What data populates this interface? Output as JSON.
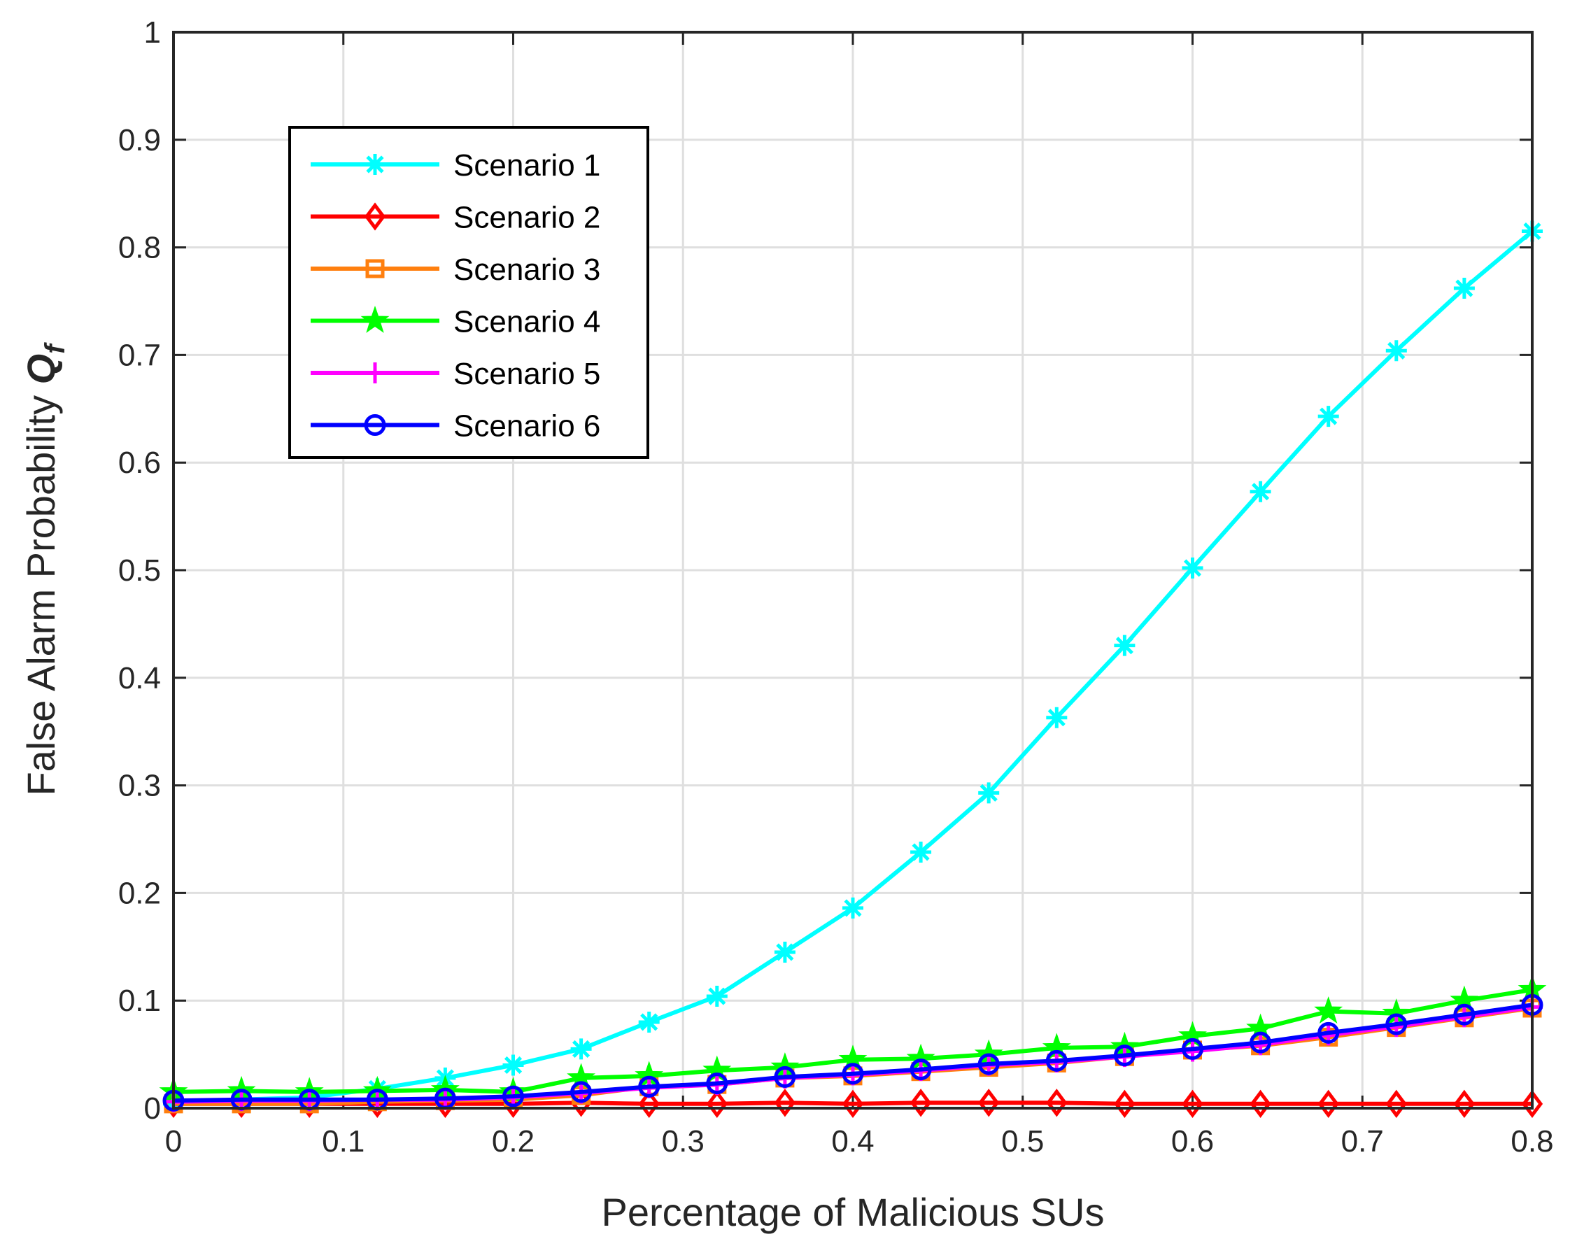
{
  "chart_data": {
    "type": "line",
    "xlabel": "Percentage of Malicious SUs",
    "ylabel": "False Alarm Probability ",
    "ylabel_symbol": "Q",
    "ylabel_subscript": "f",
    "xlim": [
      0,
      0.8
    ],
    "ylim": [
      0,
      1
    ],
    "grid": true,
    "legend_position": "top-left",
    "x_ticks": [
      "0",
      "0.1",
      "0.2",
      "0.3",
      "0.4",
      "0.5",
      "0.6",
      "0.7",
      "0.8"
    ],
    "y_ticks": [
      "0",
      "0.1",
      "0.2",
      "0.3",
      "0.4",
      "0.5",
      "0.6",
      "0.7",
      "0.8",
      "0.9",
      "1"
    ],
    "x": [
      0,
      0.04,
      0.08,
      0.12,
      0.16,
      0.2,
      0.24,
      0.28,
      0.32,
      0.36,
      0.4,
      0.44,
      0.48,
      0.52,
      0.56,
      0.6,
      0.64,
      0.68,
      0.72,
      0.76,
      0.8
    ],
    "series": [
      {
        "name": "Scenario 1",
        "color": "#00FFFF",
        "marker": "asterisk",
        "values": [
          0.004,
          0.008,
          0.01,
          0.018,
          0.028,
          0.04,
          0.055,
          0.08,
          0.104,
          0.145,
          0.186,
          0.238,
          0.293,
          0.363,
          0.43,
          0.502,
          0.573,
          0.643,
          0.704,
          0.762,
          0.815
        ]
      },
      {
        "name": "Scenario 2",
        "color": "#FF0000",
        "marker": "diamond",
        "values": [
          0.004,
          0.004,
          0.004,
          0.004,
          0.004,
          0.004,
          0.005,
          0.004,
          0.004,
          0.005,
          0.004,
          0.005,
          0.005,
          0.005,
          0.004,
          0.004,
          0.004,
          0.004,
          0.004,
          0.004,
          0.004
        ]
      },
      {
        "name": "Scenario 3",
        "color": "#FF7F0E",
        "marker": "square",
        "values": [
          0.004,
          0.004,
          0.004,
          0.006,
          0.007,
          0.008,
          0.012,
          0.02,
          0.022,
          0.028,
          0.03,
          0.034,
          0.038,
          0.042,
          0.048,
          0.054,
          0.058,
          0.066,
          0.075,
          0.084,
          0.093
        ]
      },
      {
        "name": "Scenario 4",
        "color": "#00FF00",
        "marker": "pentagram",
        "values": [
          0.015,
          0.016,
          0.015,
          0.016,
          0.017,
          0.015,
          0.028,
          0.03,
          0.035,
          0.038,
          0.045,
          0.046,
          0.05,
          0.056,
          0.057,
          0.067,
          0.074,
          0.09,
          0.088,
          0.1,
          0.11
        ]
      },
      {
        "name": "Scenario 5",
        "color": "#FF00FF",
        "marker": "plus",
        "values": [
          0.006,
          0.007,
          0.007,
          0.008,
          0.008,
          0.01,
          0.014,
          0.019,
          0.022,
          0.028,
          0.031,
          0.035,
          0.04,
          0.043,
          0.048,
          0.053,
          0.059,
          0.068,
          0.076,
          0.085,
          0.094
        ]
      },
      {
        "name": "Scenario 6",
        "color": "#0000FF",
        "marker": "circle",
        "values": [
          0.007,
          0.008,
          0.008,
          0.008,
          0.009,
          0.011,
          0.015,
          0.02,
          0.023,
          0.029,
          0.032,
          0.036,
          0.041,
          0.044,
          0.049,
          0.055,
          0.061,
          0.07,
          0.078,
          0.087,
          0.096
        ]
      }
    ]
  }
}
